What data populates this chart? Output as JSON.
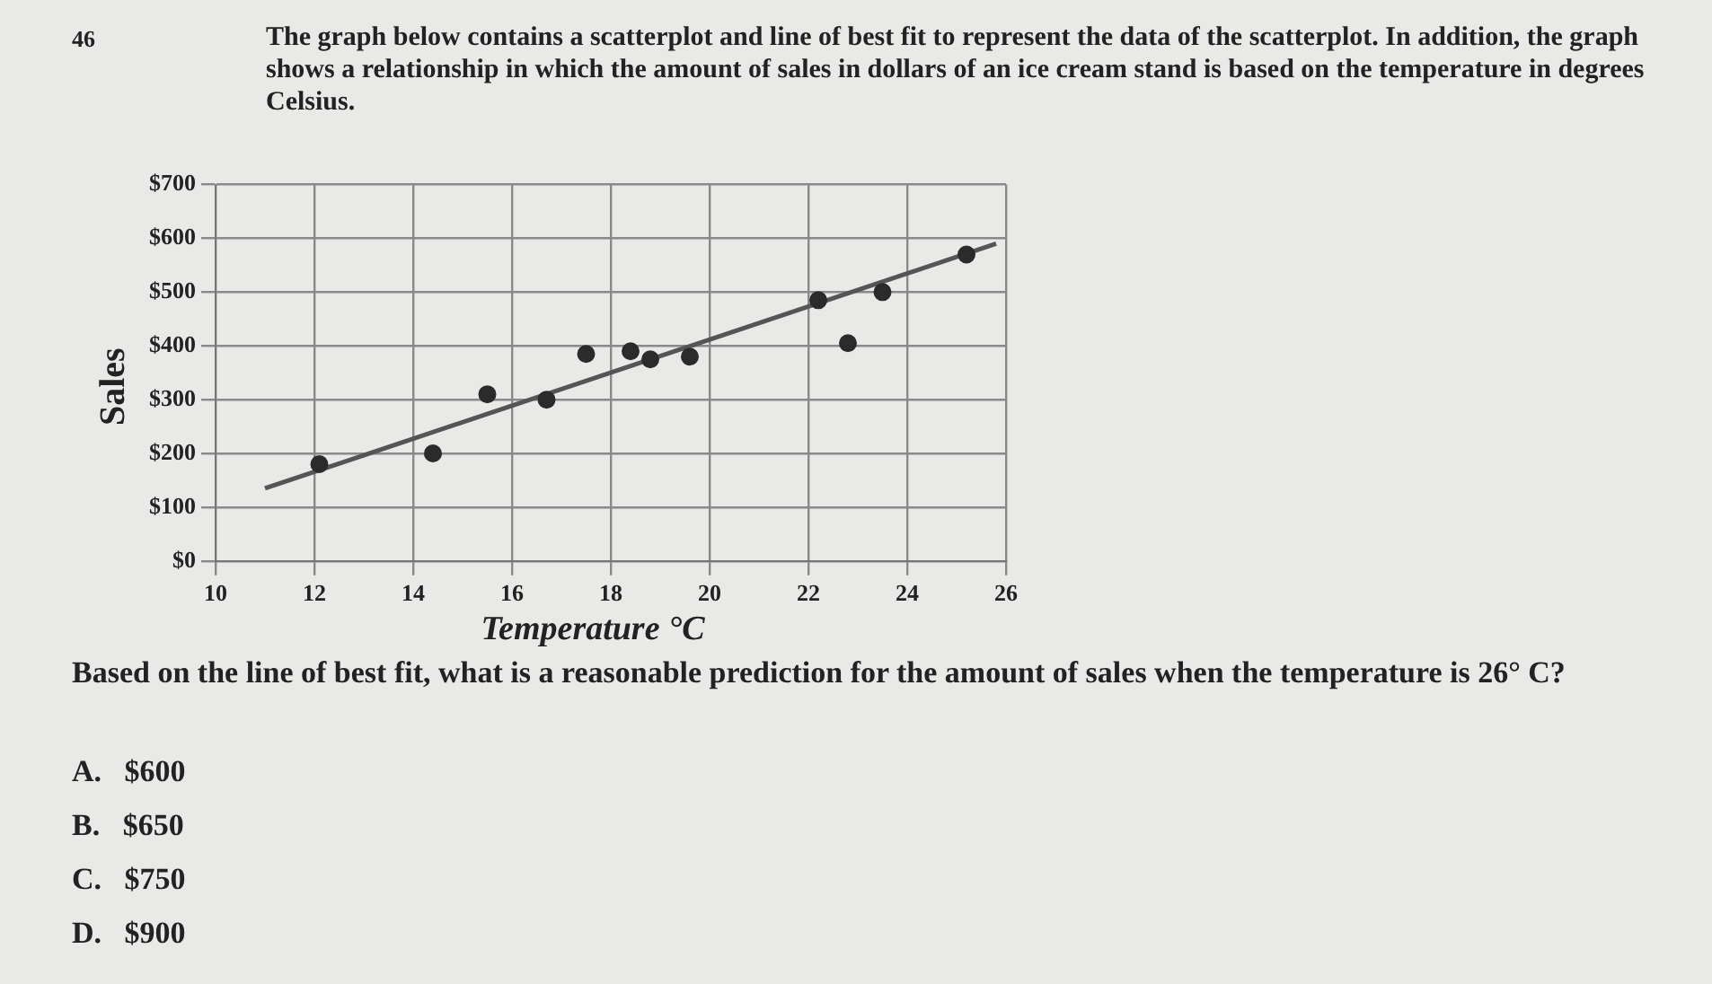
{
  "chart_data": {
    "type": "scatter",
    "title": "The graph below contains a scatterplot and line of best fit to represent the data of the scatterplot.  In addition, the graph shows a relationship in which the amount of sales in dollars of an ice cream stand is based on the temperature in degrees Celsius.",
    "xlabel": "Temperature °C",
    "ylabel": "Sales",
    "series": [
      {
        "color": "#2b2b2b",
        "marker": "circle",
        "x": [
          12.1,
          14.4,
          15.5,
          16.7,
          17.5,
          18.4,
          18.8,
          19.6,
          22.2,
          22.8,
          23.5,
          25.2
        ],
        "values": [
          180,
          200,
          310,
          300,
          385,
          390,
          375,
          380,
          485,
          405,
          500,
          570
        ]
      },
      {
        "type": "line",
        "color": "#555555",
        "marker": "none",
        "x": [
          11,
          25.8
        ],
        "values": [
          135,
          590
        ]
      }
    ],
    "xlim": [
      10,
      26
    ],
    "xticks": [
      10,
      12,
      14,
      16,
      18,
      20,
      22,
      24,
      26
    ],
    "ylim": [
      0,
      700
    ],
    "yticks": [
      {
        "value": 0,
        "label": "$0"
      },
      {
        "value": 100,
        "label": "$100"
      },
      {
        "value": 200,
        "label": "$200"
      },
      {
        "value": 300,
        "label": "$300"
      },
      {
        "value": 400,
        "label": "$400"
      },
      {
        "value": 500,
        "label": "$500"
      },
      {
        "value": 600,
        "label": "$600"
      },
      {
        "value": 700,
        "label": "$700"
      }
    ],
    "grid": true,
    "legend": false,
    "annotations": [
      "46",
      "Based on the line of best fit, what is a reasonable prediction for the amount of sales when the temperature is 26° C?",
      "A.   $600",
      "B.   $650",
      "C.   $750",
      "D.   $900"
    ]
  }
}
